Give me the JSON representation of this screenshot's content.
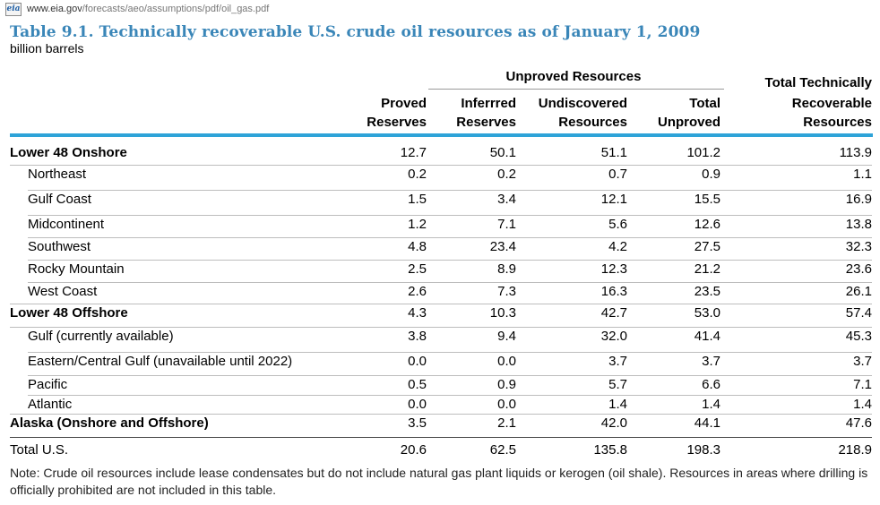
{
  "browser": {
    "favicon": "eia",
    "url_domain": "www.eia.gov",
    "url_path": "/forecasts/aeo/assumptions/pdf/oil_gas.pdf"
  },
  "doc": {
    "title": "Table 9.1.  Technically recoverable U.S. crude oil resources as of January 1, 2009",
    "units": "billion barrels",
    "group_header": "Unproved Resources",
    "columns": [
      {
        "l1": "Proved",
        "l2": "Reserves"
      },
      {
        "l1": "Inferrred",
        "l2": "Reserves"
      },
      {
        "l1": "Undiscovered",
        "l2": "Resources"
      },
      {
        "l1": "Total",
        "l2": "Unproved"
      },
      {
        "l0": "Total Technically",
        "l1": "Recoverable",
        "l2": "Resources"
      }
    ],
    "rows": [
      {
        "label": "Lower 48 Onshore",
        "style": "bold",
        "values": [
          "12.7",
          "50.1",
          "51.1",
          "101.2",
          "113.9"
        ]
      },
      {
        "label": "Northeast",
        "style": "sub",
        "values": [
          "0.2",
          "0.2",
          "0.7",
          "0.9",
          "1.1"
        ]
      },
      {
        "label": "Gulf Coast",
        "style": "sub",
        "values": [
          "1.5",
          "3.4",
          "12.1",
          "15.5",
          "16.9"
        ]
      },
      {
        "label": "Midcontinent",
        "style": "sub",
        "values": [
          "1.2",
          "7.1",
          "5.6",
          "12.6",
          "13.8"
        ]
      },
      {
        "label": "Southwest",
        "style": "sub",
        "values": [
          "4.8",
          "23.4",
          "4.2",
          "27.5",
          "32.3"
        ]
      },
      {
        "label": "Rocky Mountain",
        "style": "sub",
        "values": [
          "2.5",
          "8.9",
          "12.3",
          "21.2",
          "23.6"
        ]
      },
      {
        "label": "West Coast",
        "style": "sub",
        "values": [
          "2.6",
          "7.3",
          "16.3",
          "23.5",
          "26.1"
        ]
      },
      {
        "label": "Lower 48 Offshore",
        "style": "bold",
        "values": [
          "4.3",
          "10.3",
          "42.7",
          "53.0",
          "57.4"
        ]
      },
      {
        "label": "Gulf  (currently available)",
        "style": "sub",
        "values": [
          "3.8",
          "9.4",
          "32.0",
          "41.4",
          "45.3"
        ]
      },
      {
        "label": "Eastern/Central Gulf (unavailable until 2022)",
        "style": "sub",
        "values": [
          "0.0",
          "0.0",
          "3.7",
          "3.7",
          "3.7"
        ]
      },
      {
        "label": "Pacific",
        "style": "sub",
        "values": [
          "0.5",
          "0.9",
          "5.7",
          "6.6",
          "7.1"
        ]
      },
      {
        "label": "Atlantic",
        "style": "sub",
        "values": [
          "0.0",
          "0.0",
          "1.4",
          "1.4",
          "1.4"
        ]
      },
      {
        "label": "Alaska (Onshore and Offshore)",
        "style": "bold",
        "values": [
          "3.5",
          "2.1",
          "42.0",
          "44.1",
          "47.6"
        ]
      },
      {
        "label": "Total U.S.",
        "style": "plain",
        "values": [
          "20.6",
          "62.5",
          "135.8",
          "198.3",
          "218.9"
        ]
      }
    ],
    "note": "Note: Crude oil resources include lease condensates but do not include natural gas plant liquids or kerogen (oil shale).   Resources in areas where drilling is officially prohibited are not included in this table."
  }
}
